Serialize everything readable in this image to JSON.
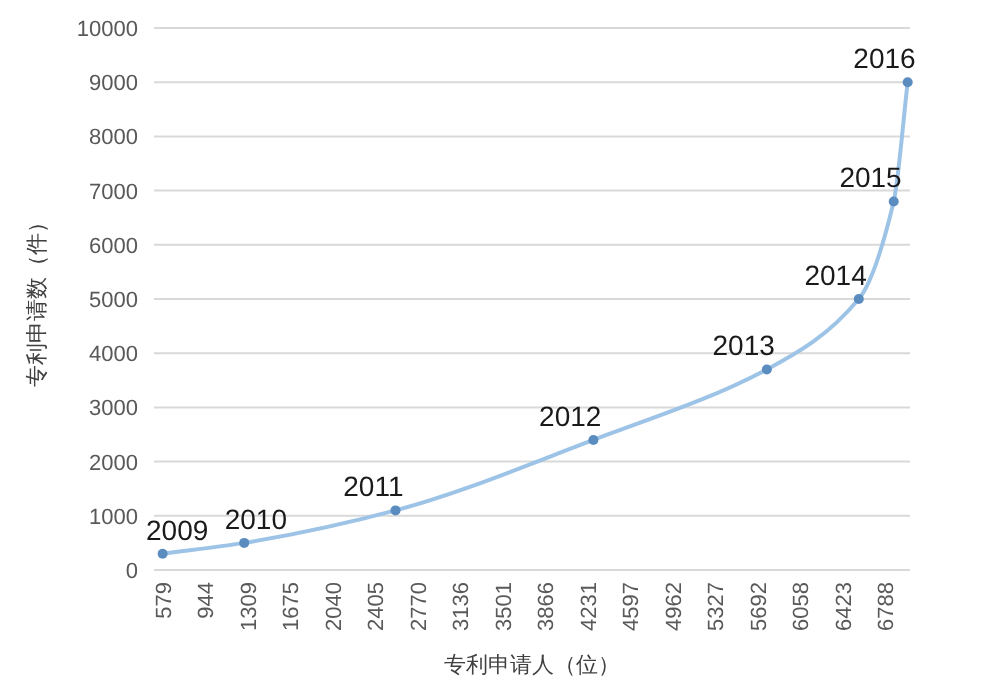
{
  "chart_data": {
    "type": "line",
    "xlabel": "专利申请人（位）",
    "ylabel": "专利申请数（件）",
    "x": [
      579,
      1280,
      2580,
      4280,
      5770,
      6560,
      6860,
      6980
    ],
    "series": [
      {
        "color": "#9dc3e6",
        "values": [
          300,
          500,
          1100,
          2400,
          3700,
          5000,
          6800,
          9000
        ]
      }
    ],
    "xlim": [
      505,
      7000
    ],
    "xticks": [
      579,
      944,
      1309,
      1675,
      2040,
      2405,
      2770,
      3136,
      3501,
      3866,
      4231,
      4597,
      4962,
      5327,
      5692,
      6058,
      6423,
      6788
    ],
    "ylim": [
      0,
      10000
    ],
    "yticks": [
      0,
      1000,
      2000,
      3000,
      4000,
      5000,
      6000,
      7000,
      8000,
      9000,
      10000
    ],
    "grid": "y",
    "marker": "circle",
    "line_style": "solid",
    "annotations": [
      {
        "text": "2009",
        "x": 579,
        "y": 300
      },
      {
        "text": "2010",
        "x": 1280,
        "y": 500
      },
      {
        "text": "2011",
        "x": 2580,
        "y": 1100
      },
      {
        "text": "2012",
        "x": 4280,
        "y": 2400
      },
      {
        "text": "2013",
        "x": 5770,
        "y": 3700
      },
      {
        "text": "2014",
        "x": 6560,
        "y": 5000
      },
      {
        "text": "2015",
        "x": 6860,
        "y": 6800
      },
      {
        "text": "2016",
        "x": 6980,
        "y": 9000
      }
    ]
  }
}
